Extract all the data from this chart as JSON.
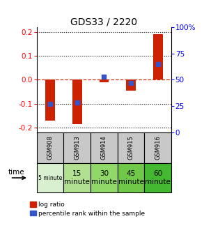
{
  "title": "GDS33 / 2220",
  "samples": [
    "GSM908",
    "GSM913",
    "GSM914",
    "GSM915",
    "GSM916"
  ],
  "time_labels_row1": [
    "5 minute",
    "15",
    "30",
    "45",
    "60"
  ],
  "time_labels_row2": [
    "",
    "minute",
    "minute",
    "minute",
    "minute"
  ],
  "log_ratios": [
    -0.17,
    -0.185,
    -0.01,
    -0.045,
    0.19
  ],
  "percentile_ranks_pct": [
    27,
    28.5,
    53,
    47,
    65
  ],
  "ylim": [
    -0.22,
    0.22
  ],
  "left_yticks": [
    -0.2,
    -0.1,
    0.0,
    0.1,
    0.2
  ],
  "right_yticks_pct": [
    0,
    25,
    50,
    75,
    100
  ],
  "bar_color": "#cc2200",
  "dot_color": "#3355cc",
  "bg_color": "#ffffff",
  "cell_color_gsm": "#c8c8c8",
  "time_colors": [
    "#d8f0d0",
    "#b0e090",
    "#90d868",
    "#70c848",
    "#44b830"
  ],
  "bar_width": 0.35
}
